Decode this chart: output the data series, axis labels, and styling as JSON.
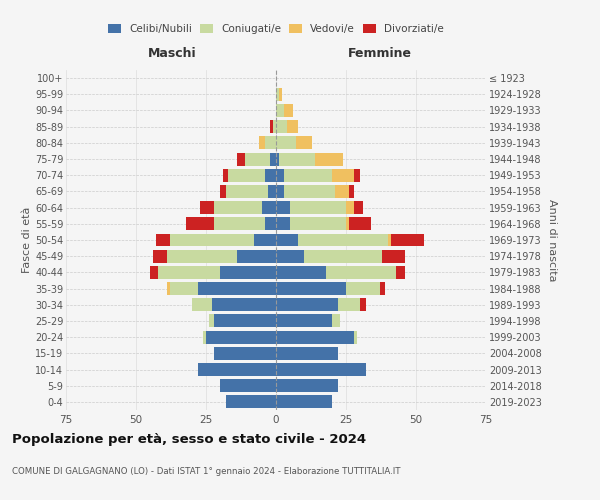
{
  "age_groups": [
    "0-4",
    "5-9",
    "10-14",
    "15-19",
    "20-24",
    "25-29",
    "30-34",
    "35-39",
    "40-44",
    "45-49",
    "50-54",
    "55-59",
    "60-64",
    "65-69",
    "70-74",
    "75-79",
    "80-84",
    "85-89",
    "90-94",
    "95-99",
    "100+"
  ],
  "birth_years": [
    "2019-2023",
    "2014-2018",
    "2009-2013",
    "2004-2008",
    "1999-2003",
    "1994-1998",
    "1989-1993",
    "1984-1988",
    "1979-1983",
    "1974-1978",
    "1969-1973",
    "1964-1968",
    "1959-1963",
    "1954-1958",
    "1949-1953",
    "1944-1948",
    "1939-1943",
    "1934-1938",
    "1929-1933",
    "1924-1928",
    "≤ 1923"
  ],
  "maschi": {
    "celibi": [
      18,
      20,
      28,
      22,
      25,
      22,
      23,
      28,
      20,
      14,
      8,
      4,
      5,
      3,
      4,
      2,
      0,
      0,
      0,
      0,
      0
    ],
    "coniugati": [
      0,
      0,
      0,
      0,
      1,
      2,
      7,
      10,
      22,
      25,
      30,
      18,
      17,
      15,
      13,
      9,
      4,
      1,
      0,
      0,
      0
    ],
    "vedovi": [
      0,
      0,
      0,
      0,
      0,
      0,
      0,
      1,
      0,
      0,
      0,
      0,
      0,
      0,
      0,
      0,
      2,
      0,
      0,
      0,
      0
    ],
    "divorziati": [
      0,
      0,
      0,
      0,
      0,
      0,
      0,
      0,
      3,
      5,
      5,
      10,
      5,
      2,
      2,
      3,
      0,
      1,
      0,
      0,
      0
    ]
  },
  "femmine": {
    "nubili": [
      20,
      22,
      32,
      22,
      28,
      20,
      22,
      25,
      18,
      10,
      8,
      5,
      5,
      3,
      3,
      1,
      0,
      0,
      0,
      0,
      0
    ],
    "coniugate": [
      0,
      0,
      0,
      0,
      1,
      3,
      8,
      12,
      25,
      28,
      32,
      20,
      20,
      18,
      17,
      13,
      7,
      4,
      3,
      1,
      0
    ],
    "vedove": [
      0,
      0,
      0,
      0,
      0,
      0,
      0,
      0,
      0,
      0,
      1,
      1,
      3,
      5,
      8,
      10,
      6,
      4,
      3,
      1,
      0
    ],
    "divorziate": [
      0,
      0,
      0,
      0,
      0,
      0,
      2,
      2,
      3,
      8,
      12,
      8,
      3,
      2,
      2,
      0,
      0,
      0,
      0,
      0,
      0
    ]
  },
  "colors": {
    "celibi": "#4472a8",
    "coniugati": "#c8daa0",
    "vedovi": "#f0c060",
    "divorziati": "#cc2222"
  },
  "xlim": 75,
  "title": "Popolazione per età, sesso e stato civile - 2024",
  "subtitle": "COMUNE DI GALGAGNANO (LO) - Dati ISTAT 1° gennaio 2024 - Elaborazione TUTTITALIA.IT",
  "ylabel_left": "Fasce di età",
  "ylabel_right": "Anni di nascita",
  "xlabel_left": "Maschi",
  "xlabel_right": "Femmine",
  "legend_labels": [
    "Celibi/Nubili",
    "Coniugati/e",
    "Vedovi/e",
    "Divorziati/e"
  ],
  "bg_color": "#f5f5f5"
}
